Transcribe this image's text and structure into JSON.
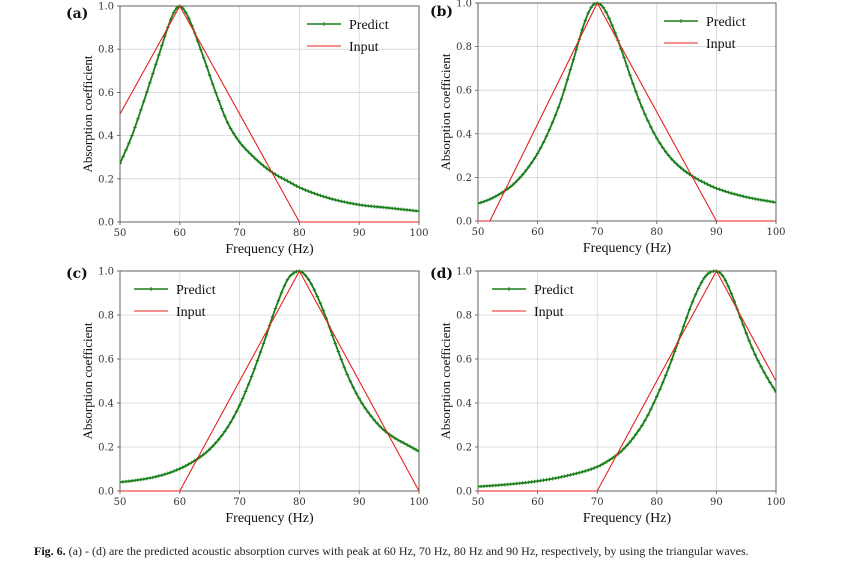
{
  "figure": {
    "caption_prefix": "Fig. 6.",
    "caption_text": "(a) - (d) are the predicted acoustic absorption curves with peak at 60 Hz, 70 Hz, 80 Hz and 90 Hz, respectively, by using the triangular waves."
  },
  "colors": {
    "predict": "#1a7f1a",
    "input": "#e8201c",
    "grid": "#d4d4d4",
    "axis": "#555555"
  },
  "chart_data": [
    {
      "panel": "(a)",
      "type": "line",
      "xlabel": "Frequency (Hz)",
      "ylabel": "Absorption coefficient",
      "xlim": [
        50,
        100
      ],
      "ylim": [
        0.0,
        1.0
      ],
      "xticks": [
        "50",
        "60",
        "70",
        "80",
        "90",
        "100"
      ],
      "yticks": [
        "0.0",
        "0.2",
        "0.4",
        "0.6",
        "0.8",
        "1.0"
      ],
      "grid": true,
      "legend": "top-right",
      "peak_hz": 60,
      "series": [
        {
          "name": "Predict",
          "style": "line-with-plus-markers",
          "x": [
            50,
            52,
            54,
            56,
            58,
            59,
            60,
            61,
            62,
            64,
            66,
            68,
            70,
            72,
            74,
            76,
            78,
            80,
            85,
            90,
            95,
            100
          ],
          "y": [
            0.27,
            0.4,
            0.56,
            0.73,
            0.9,
            0.97,
            1.0,
            0.97,
            0.91,
            0.76,
            0.6,
            0.46,
            0.37,
            0.31,
            0.26,
            0.22,
            0.19,
            0.16,
            0.11,
            0.08,
            0.065,
            0.05
          ]
        },
        {
          "name": "Input",
          "style": "line",
          "x": [
            50,
            60,
            80,
            100
          ],
          "y": [
            0.5,
            1.0,
            0.0,
            0.0
          ]
        }
      ]
    },
    {
      "panel": "(b)",
      "type": "line",
      "xlabel": "Frequency (Hz)",
      "ylabel": "Absorption coefficient",
      "xlim": [
        50,
        100
      ],
      "ylim": [
        0.0,
        1.0
      ],
      "xticks": [
        "50",
        "60",
        "70",
        "80",
        "90",
        "100"
      ],
      "yticks": [
        "0.0",
        "0.2",
        "0.4",
        "0.6",
        "0.8",
        "1.0"
      ],
      "grid": true,
      "legend": "top-right",
      "peak_hz": 70,
      "series": [
        {
          "name": "Predict",
          "style": "line-with-plus-markers",
          "x": [
            50,
            52,
            54,
            56,
            58,
            60,
            62,
            64,
            66,
            68,
            69,
            70,
            71,
            72,
            74,
            76,
            78,
            80,
            82,
            84,
            86,
            88,
            90,
            95,
            100
          ],
          "y": [
            0.08,
            0.1,
            0.13,
            0.17,
            0.23,
            0.31,
            0.42,
            0.56,
            0.74,
            0.92,
            0.98,
            1.0,
            0.98,
            0.93,
            0.79,
            0.63,
            0.49,
            0.38,
            0.3,
            0.245,
            0.205,
            0.175,
            0.15,
            0.11,
            0.085
          ]
        },
        {
          "name": "Input",
          "style": "line",
          "x": [
            50,
            52,
            70,
            90,
            100
          ],
          "y": [
            0.0,
            0.0,
            1.0,
            0.0,
            0.0
          ]
        }
      ]
    },
    {
      "panel": "(c)",
      "type": "line",
      "xlabel": "Frequency (Hz)",
      "ylabel": "Absorption coefficient",
      "xlim": [
        50,
        100
      ],
      "ylim": [
        0.0,
        1.0
      ],
      "xticks": [
        "50",
        "60",
        "70",
        "80",
        "90",
        "100"
      ],
      "yticks": [
        "0.0",
        "0.2",
        "0.4",
        "0.6",
        "0.8",
        "1.0"
      ],
      "grid": true,
      "legend": "top-left",
      "peak_hz": 80,
      "series": [
        {
          "name": "Predict",
          "style": "line-with-plus-markers",
          "x": [
            50,
            53,
            56,
            59,
            62,
            65,
            68,
            70,
            72,
            74,
            76,
            78,
            79,
            80,
            81,
            82,
            84,
            86,
            88,
            90,
            92,
            94,
            96,
            98,
            100
          ],
          "y": [
            0.04,
            0.05,
            0.065,
            0.09,
            0.13,
            0.19,
            0.29,
            0.39,
            0.52,
            0.67,
            0.83,
            0.96,
            0.99,
            1.0,
            0.98,
            0.94,
            0.82,
            0.67,
            0.53,
            0.42,
            0.34,
            0.28,
            0.24,
            0.21,
            0.18
          ]
        },
        {
          "name": "Input",
          "style": "line",
          "x": [
            50,
            60,
            80,
            100
          ],
          "y": [
            0.0,
            0.0,
            1.0,
            0.0
          ]
        }
      ]
    },
    {
      "panel": "(d)",
      "type": "line",
      "xlabel": "Frequency (Hz)",
      "ylabel": "Absorption coefficient",
      "xlim": [
        50,
        100
      ],
      "ylim": [
        0.0,
        1.0
      ],
      "xticks": [
        "50",
        "60",
        "70",
        "80",
        "90",
        "100"
      ],
      "yticks": [
        "0.0",
        "0.2",
        "0.4",
        "0.6",
        "0.8",
        "1.0"
      ],
      "grid": true,
      "legend": "top-left",
      "peak_hz": 90,
      "series": [
        {
          "name": "Predict",
          "style": "line-with-plus-markers",
          "x": [
            50,
            55,
            60,
            65,
            70,
            72,
            74,
            76,
            78,
            80,
            82,
            84,
            86,
            88,
            89,
            90,
            91,
            92,
            94,
            96,
            98,
            100
          ],
          "y": [
            0.02,
            0.03,
            0.045,
            0.07,
            0.11,
            0.14,
            0.18,
            0.24,
            0.32,
            0.43,
            0.56,
            0.71,
            0.86,
            0.97,
            0.995,
            1.0,
            0.98,
            0.93,
            0.79,
            0.65,
            0.54,
            0.45
          ]
        },
        {
          "name": "Input",
          "style": "line",
          "x": [
            50,
            70,
            90,
            100
          ],
          "y": [
            0.0,
            0.0,
            1.0,
            0.5
          ]
        }
      ]
    }
  ]
}
